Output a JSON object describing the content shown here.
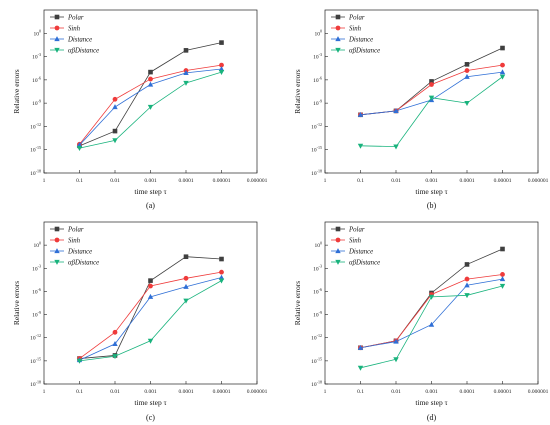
{
  "colors": {
    "Polar": "#3f3f3f",
    "Sinh": "#ef3b3b",
    "Distance": "#2f6fd6",
    "AlphaBetaDistance": "#19b37d"
  },
  "chart_data": [
    {
      "type": "line",
      "caption": "(a)",
      "xlabel": "time step τ",
      "ylabel": "Relative errors",
      "x_scale": "log-reversed",
      "xlim": [
        1,
        1e-06
      ],
      "y_scale": "log",
      "ylim_exp": [
        -18,
        3
      ],
      "x_ticks": [
        "1",
        "0.1",
        "0.01",
        "0.001",
        "0.0001",
        "0.00001",
        "0.000001"
      ],
      "y_ticks_exp": [
        -18,
        -15,
        -12,
        -9,
        -6,
        -3,
        0
      ],
      "y_tick_base": "10",
      "legend_position": "top-left",
      "x": [
        0.1,
        0.01,
        0.001,
        0.0001,
        1e-05
      ],
      "series": [
        {
          "name": "Polar",
          "marker": "square",
          "log10_values": [
            -14.5,
            -12.6,
            -5.0,
            -2.2,
            -1.2
          ]
        },
        {
          "name": "Sinh",
          "marker": "circle",
          "log10_values": [
            -14.3,
            -8.5,
            -5.9,
            -4.8,
            -4.1
          ]
        },
        {
          "name": "Distance",
          "marker": "triangle-up",
          "log10_values": [
            -14.4,
            -9.5,
            -6.6,
            -5.1,
            -4.6
          ]
        },
        {
          "name": "αβDistance",
          "marker": "triangle-down",
          "log10_values": [
            -14.8,
            -13.8,
            -9.5,
            -6.4,
            -5.0
          ]
        }
      ]
    },
    {
      "type": "line",
      "caption": "(b)",
      "xlabel": "time step τ",
      "ylabel": "Relative errors",
      "x_scale": "log-reversed",
      "xlim": [
        1,
        1e-06
      ],
      "y_scale": "log",
      "ylim_exp": [
        -18,
        3
      ],
      "x_ticks": [
        "1",
        "0.1",
        "0.01",
        "0.001",
        "0.0001",
        "0.00001",
        "0.000001"
      ],
      "y_ticks_exp": [
        -18,
        -15,
        -12,
        -9,
        -6,
        -3,
        0
      ],
      "y_tick_base": "10",
      "legend_position": "top-left",
      "x": [
        0.1,
        0.01,
        0.001,
        0.0001,
        1e-05
      ],
      "series": [
        {
          "name": "Polar",
          "marker": "square",
          "log10_values": [
            -10.5,
            -10.0,
            -6.2,
            -4.0,
            -1.9
          ]
        },
        {
          "name": "Sinh",
          "marker": "circle",
          "log10_values": [
            -10.5,
            -10.0,
            -6.6,
            -4.8,
            -4.1
          ]
        },
        {
          "name": "Distance",
          "marker": "triangle-up",
          "log10_values": [
            -10.5,
            -10.0,
            -8.6,
            -5.6,
            -5.0
          ]
        },
        {
          "name": "αβDistance",
          "marker": "triangle-down",
          "log10_values": [
            -14.5,
            -14.6,
            -8.3,
            -9.0,
            -5.6
          ]
        }
      ]
    },
    {
      "type": "line",
      "caption": "(c)",
      "xlabel": "time step τ",
      "ylabel": "Relative errors",
      "x_scale": "log-reversed",
      "xlim": [
        1,
        1e-06
      ],
      "y_scale": "log",
      "ylim_exp": [
        -18,
        3
      ],
      "x_ticks": [
        "1",
        "0.1",
        "0.01",
        "0.001",
        "0.0001",
        "0.00001",
        "0.000001"
      ],
      "y_ticks_exp": [
        -18,
        -15,
        -12,
        -9,
        -6,
        -3,
        0
      ],
      "y_tick_base": "10",
      "legend_position": "top-left",
      "x": [
        0.1,
        0.01,
        0.001,
        0.0001,
        1e-05
      ],
      "series": [
        {
          "name": "Polar",
          "marker": "square",
          "log10_values": [
            -14.7,
            -14.3,
            -4.6,
            -1.5,
            -1.8
          ]
        },
        {
          "name": "Sinh",
          "marker": "circle",
          "log10_values": [
            -14.7,
            -11.3,
            -5.3,
            -4.3,
            -3.5
          ]
        },
        {
          "name": "Distance",
          "marker": "triangle-up",
          "log10_values": [
            -14.9,
            -12.8,
            -6.7,
            -5.4,
            -4.2
          ]
        },
        {
          "name": "αβDistance",
          "marker": "triangle-down",
          "log10_values": [
            -15.0,
            -14.4,
            -12.4,
            -7.2,
            -4.6
          ]
        }
      ]
    },
    {
      "type": "line",
      "caption": "(d)",
      "xlabel": "time step τ",
      "ylabel": "Relative errors",
      "x_scale": "log-reversed",
      "xlim": [
        1,
        1e-06
      ],
      "y_scale": "log",
      "ylim_exp": [
        -18,
        3
      ],
      "x_ticks": [
        "1",
        "0.1",
        "0.01",
        "0.001",
        "0.0001",
        "0.00001",
        "0.000001"
      ],
      "y_ticks_exp": [
        -18,
        -15,
        -12,
        -9,
        -6,
        -3,
        0
      ],
      "y_tick_base": "10",
      "legend_position": "top-left",
      "x": [
        0.1,
        0.01,
        0.001,
        0.0001,
        1e-05
      ],
      "series": [
        {
          "name": "Polar",
          "marker": "square",
          "log10_values": [
            -13.3,
            -12.4,
            -6.2,
            -2.5,
            -0.5
          ]
        },
        {
          "name": "Sinh",
          "marker": "circle",
          "log10_values": [
            -13.3,
            -12.4,
            -6.4,
            -4.4,
            -3.8
          ]
        },
        {
          "name": "Distance",
          "marker": "triangle-up",
          "log10_values": [
            -13.3,
            -12.5,
            -10.3,
            -5.2,
            -4.4
          ]
        },
        {
          "name": "αβDistance",
          "marker": "triangle-down",
          "log10_values": [
            -15.9,
            -14.8,
            -6.7,
            -6.5,
            -5.3
          ]
        }
      ]
    }
  ]
}
